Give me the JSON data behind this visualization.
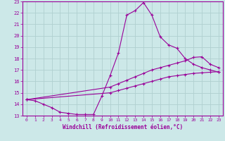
{
  "xlabel": "Windchill (Refroidissement éolien,°C)",
  "xlim": [
    -0.5,
    23.5
  ],
  "ylim": [
    13,
    23
  ],
  "yticks": [
    13,
    14,
    15,
    16,
    17,
    18,
    19,
    20,
    21,
    22,
    23
  ],
  "xticks": [
    0,
    1,
    2,
    3,
    4,
    5,
    6,
    7,
    8,
    9,
    10,
    11,
    12,
    13,
    14,
    15,
    16,
    17,
    18,
    19,
    20,
    21,
    22,
    23
  ],
  "bg_color": "#cce8e8",
  "grid_color": "#b0d0d0",
  "line_color": "#990099",
  "line1_x": [
    0,
    1,
    2,
    3,
    4,
    5,
    6,
    7,
    8,
    9,
    10,
    11,
    12,
    13,
    14,
    15,
    16,
    17,
    18,
    19,
    20,
    21,
    22,
    23
  ],
  "line1_y": [
    14.4,
    14.3,
    14.0,
    13.7,
    13.3,
    13.2,
    13.1,
    13.1,
    13.1,
    14.7,
    16.5,
    18.5,
    21.8,
    22.2,
    22.9,
    21.8,
    19.9,
    19.2,
    18.9,
    18.0,
    17.5,
    17.2,
    17.0,
    16.8
  ],
  "line2_x": [
    0,
    10,
    11,
    12,
    13,
    14,
    15,
    16,
    17,
    18,
    19,
    20,
    21,
    22,
    23
  ],
  "line2_y": [
    14.4,
    15.5,
    15.8,
    16.1,
    16.4,
    16.7,
    17.0,
    17.2,
    17.4,
    17.6,
    17.8,
    18.1,
    18.15,
    17.5,
    17.2
  ],
  "line3_x": [
    0,
    10,
    11,
    12,
    13,
    14,
    15,
    16,
    17,
    18,
    19,
    20,
    21,
    22,
    23
  ],
  "line3_y": [
    14.4,
    15.0,
    15.2,
    15.4,
    15.6,
    15.8,
    16.0,
    16.2,
    16.4,
    16.5,
    16.6,
    16.7,
    16.75,
    16.8,
    16.85
  ]
}
